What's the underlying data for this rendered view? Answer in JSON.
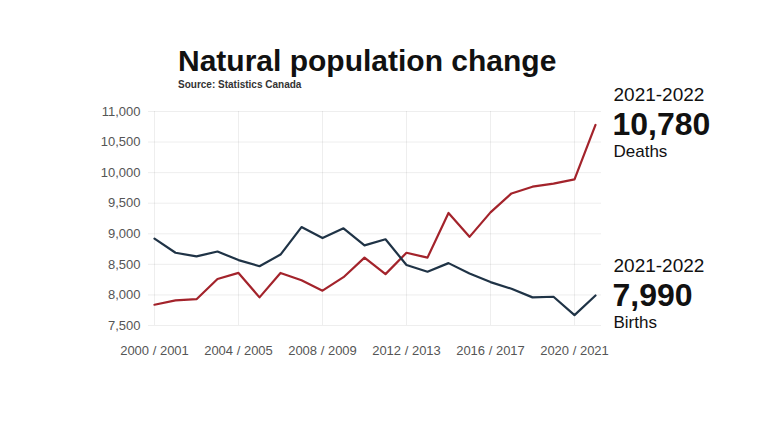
{
  "chart_data": {
    "type": "line",
    "title": "Natural population change",
    "subtitle": "Source: Statistics Canada",
    "categories": [
      "2000 / 2001",
      null,
      null,
      null,
      "2004 / 2005",
      null,
      null,
      null,
      "2008 / 2009",
      null,
      null,
      null,
      "2012 / 2013",
      null,
      null,
      null,
      "2016 / 2017",
      null,
      null,
      null,
      "2020 / 2021",
      null
    ],
    "series": [
      {
        "name": "Deaths",
        "color": "#a3232b",
        "values": [
          7840,
          7910,
          7930,
          8260,
          8360,
          7960,
          8360,
          8240,
          8070,
          8290,
          8610,
          8340,
          8690,
          8610,
          9340,
          8950,
          9350,
          9660,
          9770,
          9820,
          9890,
          10780
        ]
      },
      {
        "name": "Births",
        "color": "#1f3346",
        "values": [
          8920,
          8690,
          8630,
          8710,
          8570,
          8470,
          8660,
          9110,
          8930,
          9090,
          8810,
          8910,
          8490,
          8380,
          8520,
          8350,
          8210,
          8100,
          7960,
          7970,
          7670,
          7990
        ]
      }
    ],
    "annotations": [
      {
        "series": "Deaths",
        "period": "2021-2022",
        "label": "10,780"
      },
      {
        "series": "Births",
        "period": "2021-2022",
        "label": "7,990"
      }
    ],
    "ylim": [
      7500,
      11000
    ],
    "yticks": [
      {
        "value": 7500,
        "label": "7,500"
      },
      {
        "value": 8000,
        "label": "8,000"
      },
      {
        "value": 8500,
        "label": "8,500"
      },
      {
        "value": 9000,
        "label": "9,000"
      },
      {
        "value": 9500,
        "label": "9,500"
      },
      {
        "value": 10000,
        "label": "10,000"
      },
      {
        "value": 10500,
        "label": "10,500"
      },
      {
        "value": 11000,
        "label": "11,000"
      }
    ],
    "grid": true
  }
}
